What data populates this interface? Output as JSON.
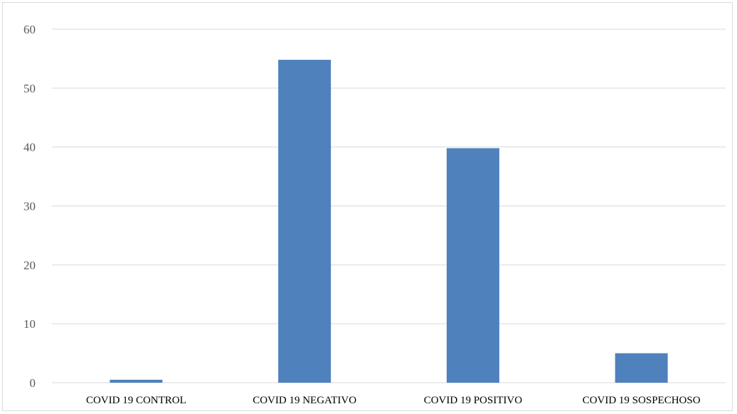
{
  "chart_data": {
    "type": "bar",
    "categories": [
      "COVID 19 CONTROL",
      "COVID 19 NEGATIVO",
      "COVID 19 POSITIVO",
      "COVID 19 SOSPECHOSO"
    ],
    "values": [
      0.5,
      54.8,
      39.8,
      5.0
    ],
    "ylim": [
      0,
      60
    ],
    "yticks": [
      0,
      10,
      20,
      30,
      40,
      50,
      60
    ],
    "grid": true,
    "legend": "none",
    "bar_color": "#4f81bd",
    "grid_color": "#d9d9d9"
  }
}
